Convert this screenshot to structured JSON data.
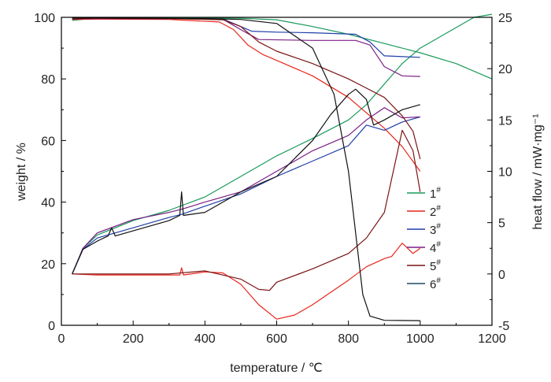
{
  "chart_data": {
    "type": "line",
    "xlabel": "temperature / ℃",
    "ylabel_left": "weight / %",
    "ylabel_right": "heat flow / mW·mg⁻¹",
    "xlim": [
      0,
      1200
    ],
    "ylim_left": [
      0,
      100
    ],
    "ylim_right": [
      -5,
      25
    ],
    "x_ticks": [
      "0",
      "200",
      "400",
      "600",
      "800",
      "1000",
      "1200"
    ],
    "y_left_ticks": [
      "0",
      "20",
      "40",
      "60",
      "80",
      "100"
    ],
    "y_right_ticks": [
      "-5",
      "0",
      "5",
      "10",
      "15",
      "20",
      "25"
    ],
    "grid": false,
    "legend_position": "right",
    "legend": [
      {
        "label": "1",
        "sup": "#",
        "color": "#1a9a5a"
      },
      {
        "label": "2",
        "sup": "#",
        "color": "#e8261c"
      },
      {
        "label": "3",
        "sup": "#",
        "color": "#1f3fa8"
      },
      {
        "label": "4",
        "sup": "#",
        "color": "#7a1f86"
      },
      {
        "label": "5",
        "sup": "#",
        "color": "#7a1414"
      },
      {
        "label": "6",
        "sup": "#",
        "color": "#1f4a6a"
      }
    ],
    "series": [
      {
        "sample": "1",
        "kind": "weight",
        "axis": "left",
        "color": "#1a9a5a",
        "points": [
          [
            30,
            99
          ],
          [
            100,
            99.8
          ],
          [
            300,
            99.8
          ],
          [
            500,
            99.7
          ],
          [
            600,
            99.2
          ],
          [
            700,
            97
          ],
          [
            800,
            94.5
          ],
          [
            900,
            91.5
          ],
          [
            1000,
            88.5
          ],
          [
            1100,
            85
          ],
          [
            1200,
            80
          ]
        ]
      },
      {
        "sample": "1",
        "kind": "heat",
        "axis": "right",
        "color": "#1a9a5a",
        "points": [
          [
            30,
            0
          ],
          [
            60,
            2.5
          ],
          [
            100,
            3.8
          ],
          [
            200,
            5.2
          ],
          [
            300,
            6.2
          ],
          [
            400,
            7.5
          ],
          [
            500,
            9.5
          ],
          [
            600,
            11.5
          ],
          [
            700,
            13.2
          ],
          [
            800,
            15
          ],
          [
            850,
            16.5
          ],
          [
            900,
            18.5
          ],
          [
            950,
            20.5
          ],
          [
            1000,
            22
          ],
          [
            1050,
            23
          ],
          [
            1100,
            24
          ],
          [
            1150,
            25
          ],
          [
            1200,
            25.3
          ]
        ]
      },
      {
        "sample": "2",
        "kind": "weight",
        "axis": "left",
        "color": "#e8261c",
        "points": [
          [
            30,
            99.3
          ],
          [
            100,
            99.4
          ],
          [
            300,
            99.3
          ],
          [
            440,
            98.5
          ],
          [
            480,
            96
          ],
          [
            520,
            91
          ],
          [
            560,
            88
          ],
          [
            600,
            86
          ],
          [
            700,
            81
          ],
          [
            800,
            74
          ],
          [
            900,
            64
          ],
          [
            950,
            58
          ],
          [
            1000,
            50
          ]
        ]
      },
      {
        "sample": "2",
        "kind": "heat",
        "axis": "right",
        "color": "#e8261c",
        "points": [
          [
            30,
            0
          ],
          [
            100,
            -0.1
          ],
          [
            200,
            -0.1
          ],
          [
            330,
            -0.1
          ],
          [
            335,
            0.6
          ],
          [
            340,
            -0.1
          ],
          [
            400,
            0.2
          ],
          [
            450,
            0.1
          ],
          [
            500,
            -1
          ],
          [
            550,
            -3
          ],
          [
            600,
            -4.4
          ],
          [
            650,
            -4
          ],
          [
            700,
            -3
          ],
          [
            750,
            -1.8
          ],
          [
            800,
            -0.6
          ],
          [
            850,
            0.7
          ],
          [
            900,
            1.5
          ],
          [
            920,
            1.7
          ],
          [
            950,
            3
          ],
          [
            980,
            2
          ],
          [
            1000,
            2.5
          ]
        ]
      },
      {
        "sample": "3",
        "kind": "weight",
        "axis": "left",
        "color": "#1f3fa8",
        "points": [
          [
            30,
            99.5
          ],
          [
            100,
            99.7
          ],
          [
            300,
            99.6
          ],
          [
            450,
            99.5
          ],
          [
            500,
            97
          ],
          [
            530,
            95.5
          ],
          [
            600,
            95.2
          ],
          [
            700,
            95
          ],
          [
            820,
            94.5
          ],
          [
            860,
            92
          ],
          [
            900,
            87.5
          ],
          [
            1000,
            87
          ]
        ]
      },
      {
        "sample": "3",
        "kind": "heat",
        "axis": "right",
        "color": "#1f3fa8",
        "points": [
          [
            30,
            0
          ],
          [
            60,
            2.4
          ],
          [
            100,
            3.5
          ],
          [
            200,
            4.5
          ],
          [
            300,
            5.5
          ],
          [
            335,
            5.8
          ],
          [
            400,
            6.6
          ],
          [
            500,
            7.8
          ],
          [
            600,
            9.5
          ],
          [
            700,
            11
          ],
          [
            800,
            12.5
          ],
          [
            850,
            14.5
          ],
          [
            900,
            14
          ],
          [
            950,
            14.8
          ],
          [
            1000,
            15.3
          ]
        ]
      },
      {
        "sample": "4",
        "kind": "weight",
        "axis": "left",
        "color": "#7a1f86",
        "points": [
          [
            30,
            99.5
          ],
          [
            100,
            99.6
          ],
          [
            300,
            99.6
          ],
          [
            450,
            99.4
          ],
          [
            500,
            96
          ],
          [
            550,
            92.8
          ],
          [
            700,
            92.5
          ],
          [
            820,
            92.5
          ],
          [
            860,
            91
          ],
          [
            900,
            84
          ],
          [
            950,
            81
          ],
          [
            1000,
            80.8
          ]
        ]
      },
      {
        "sample": "4",
        "kind": "heat",
        "axis": "right",
        "color": "#7a1f86",
        "points": [
          [
            30,
            0
          ],
          [
            60,
            2.5
          ],
          [
            100,
            4
          ],
          [
            200,
            5.3
          ],
          [
            300,
            6
          ],
          [
            335,
            6.3
          ],
          [
            400,
            7
          ],
          [
            500,
            8
          ],
          [
            600,
            10
          ],
          [
            700,
            12
          ],
          [
            800,
            13.5
          ],
          [
            850,
            15
          ],
          [
            900,
            16.2
          ],
          [
            950,
            15.2
          ],
          [
            1000,
            15.3
          ]
        ]
      },
      {
        "sample": "5",
        "kind": "weight",
        "axis": "left",
        "color": "#7a1414",
        "points": [
          [
            30,
            99.5
          ],
          [
            100,
            99.7
          ],
          [
            300,
            99.6
          ],
          [
            450,
            99.2
          ],
          [
            500,
            97
          ],
          [
            550,
            92
          ],
          [
            600,
            89
          ],
          [
            700,
            85
          ],
          [
            800,
            80
          ],
          [
            850,
            77
          ],
          [
            900,
            74
          ],
          [
            950,
            68
          ],
          [
            980,
            63
          ],
          [
            1000,
            54
          ]
        ]
      },
      {
        "sample": "5",
        "kind": "heat",
        "axis": "right",
        "color": "#7a1414",
        "points": [
          [
            30,
            0
          ],
          [
            100,
            0
          ],
          [
            200,
            0
          ],
          [
            300,
            0
          ],
          [
            400,
            0.3
          ],
          [
            500,
            -0.5
          ],
          [
            550,
            -1.5
          ],
          [
            580,
            -1.6
          ],
          [
            600,
            -0.8
          ],
          [
            700,
            0.5
          ],
          [
            800,
            2
          ],
          [
            850,
            3.5
          ],
          [
            900,
            6
          ],
          [
            950,
            14
          ],
          [
            980,
            12
          ],
          [
            1000,
            8
          ]
        ]
      },
      {
        "sample": "6",
        "kind": "weight",
        "axis": "left",
        "color": "#111111",
        "points": [
          [
            30,
            99.8
          ],
          [
            100,
            99.8
          ],
          [
            400,
            99.6
          ],
          [
            500,
            99.3
          ],
          [
            600,
            98
          ],
          [
            700,
            90
          ],
          [
            760,
            75
          ],
          [
            800,
            50
          ],
          [
            820,
            30
          ],
          [
            840,
            10
          ],
          [
            860,
            3
          ],
          [
            900,
            1.6
          ],
          [
            1000,
            1.5
          ]
        ]
      },
      {
        "sample": "6",
        "kind": "heat",
        "axis": "right",
        "color": "#111111",
        "points": [
          [
            30,
            0
          ],
          [
            60,
            2.4
          ],
          [
            100,
            3.2
          ],
          [
            130,
            3.7
          ],
          [
            140,
            4.5
          ],
          [
            150,
            3.7
          ],
          [
            200,
            4.2
          ],
          [
            300,
            5.2
          ],
          [
            330,
            5.7
          ],
          [
            335,
            8
          ],
          [
            340,
            5.7
          ],
          [
            400,
            6
          ],
          [
            450,
            7
          ],
          [
            500,
            8
          ],
          [
            600,
            9.5
          ],
          [
            700,
            13
          ],
          [
            750,
            15.5
          ],
          [
            800,
            17.5
          ],
          [
            820,
            18
          ],
          [
            850,
            17
          ],
          [
            870,
            14.5
          ],
          [
            900,
            15
          ],
          [
            950,
            16
          ],
          [
            1000,
            16.5
          ]
        ]
      }
    ]
  }
}
